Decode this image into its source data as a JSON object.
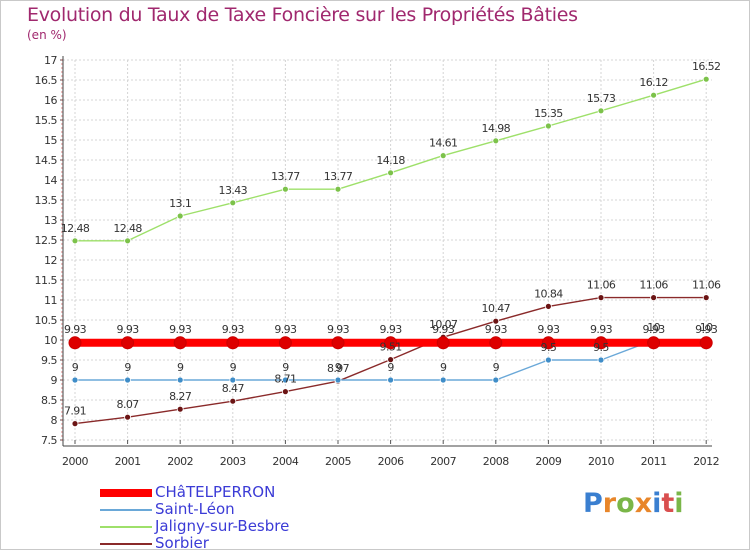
{
  "title": "Evolution du Taux de Taxe Foncière sur les Propriétés Bâties",
  "unit_label": "(en %)",
  "logo": {
    "letters": [
      "P",
      "r",
      "o",
      "x",
      "i",
      "t",
      "i"
    ],
    "colors": [
      "#3a7fd0",
      "#e8862a",
      "#7ab648",
      "#e8862a",
      "#3a7fd0",
      "#d94f4f",
      "#7ab648"
    ]
  },
  "chart_data": {
    "type": "line",
    "title": "Evolution du Taux de Taxe Foncière sur les Propriétés Bâties",
    "ylabel": "(en %)",
    "xlabel": "",
    "x": [
      "2000",
      "2001",
      "2002",
      "2003",
      "2004",
      "2005",
      "2006",
      "2007",
      "2008",
      "2009",
      "2010",
      "2011",
      "2012"
    ],
    "ylim": [
      7.5,
      17
    ],
    "yticks": [
      "7.5",
      "8",
      "8.5",
      "9",
      "9.5",
      "10",
      "10.5",
      "11",
      "11.5",
      "12",
      "12.5",
      "13",
      "13.5",
      "14",
      "14.5",
      "15",
      "15.5",
      "16",
      "16.5",
      "17"
    ],
    "grid": true,
    "series": [
      {
        "name": "CHâTELPERRON",
        "color": "#ff0000",
        "marker_color": "#dd0000",
        "values": [
          9.93,
          9.93,
          9.93,
          9.93,
          9.93,
          9.93,
          9.93,
          9.93,
          9.93,
          9.93,
          9.93,
          9.93,
          9.93
        ],
        "labels": [
          "9.93",
          "9.93",
          "9.93",
          "9.93",
          "9.93",
          "9.93",
          "9.93",
          "9.93",
          "9.93",
          "9.93",
          "9.93",
          "9.93",
          "9.93"
        ]
      },
      {
        "name": "Saint-Léon",
        "color": "#6aa8d8",
        "marker_color": "#3f8dc8",
        "values": [
          9,
          9,
          9,
          9,
          9,
          9,
          9,
          9,
          9,
          9.5,
          9.5,
          10,
          10
        ],
        "labels": [
          "9",
          "9",
          "9",
          "9",
          "9",
          "9",
          "9",
          "9",
          "9",
          "9.5",
          "9.5",
          "10",
          "10"
        ]
      },
      {
        "name": "Jaligny-sur-Besbre",
        "color": "#9ee06a",
        "marker_color": "#7cc24a",
        "values": [
          12.48,
          12.48,
          13.1,
          13.43,
          13.77,
          13.77,
          14.18,
          14.61,
          14.98,
          15.35,
          15.73,
          16.12,
          16.52
        ],
        "labels": [
          "12.48",
          "12.48",
          "13.1",
          "13.43",
          "13.77",
          "13.77",
          "14.18",
          "14.61",
          "14.98",
          "15.35",
          "15.73",
          "16.12",
          "16.52"
        ]
      },
      {
        "name": "Sorbier",
        "color": "#8a2a2a",
        "marker_color": "#6b1414",
        "values": [
          7.91,
          8.07,
          8.27,
          8.47,
          8.71,
          8.97,
          9.51,
          10.07,
          10.47,
          10.84,
          11.06,
          11.06,
          11.06
        ],
        "labels": [
          "7.91",
          "8.07",
          "8.27",
          "8.47",
          "8.71",
          "8.97",
          "9.51",
          "10.07",
          "10.47",
          "10.84",
          "11.06",
          "11.06",
          "11.06"
        ]
      }
    ]
  }
}
